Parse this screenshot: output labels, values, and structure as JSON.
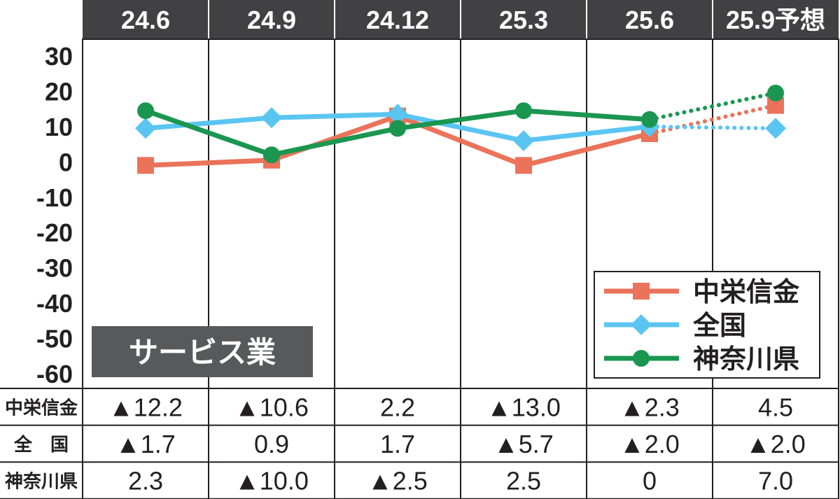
{
  "chart_data": {
    "type": "line",
    "categories": [
      "24.6",
      "24.9",
      "24.12",
      "25.3",
      "25.6",
      "25.9予想"
    ],
    "forecast_from_index": 4,
    "ylim": [
      -60,
      30
    ],
    "yticks": [
      "30",
      "20",
      "10",
      "0",
      "-10",
      "-20",
      "-30",
      "-40",
      "-50",
      "-60"
    ],
    "ytick_values": [
      30,
      20,
      10,
      0,
      -10,
      -20,
      -30,
      -40,
      -50,
      -60
    ],
    "badge": "サービス業",
    "legend_position": "bottom-right",
    "series": [
      {
        "name": "中栄信金",
        "color": "#ea735a",
        "marker": "square",
        "values": [
          -1,
          0.5,
          13,
          -1,
          8,
          16
        ]
      },
      {
        "name": "全国",
        "color": "#5bc5f2",
        "marker": "diamond",
        "values": [
          9.5,
          12.5,
          13.5,
          6,
          10,
          9.5
        ]
      },
      {
        "name": "神奈川県",
        "color": "#1a9650",
        "marker": "circle",
        "values": [
          14.5,
          2,
          9.5,
          14.5,
          12,
          19.5
        ]
      }
    ],
    "table": {
      "row_labels": [
        "中栄信金",
        "全　国",
        "神奈川県"
      ],
      "rows": [
        [
          "▲12.2",
          "▲10.6",
          "2.2",
          "▲13.0",
          "▲2.3",
          "4.5"
        ],
        [
          "▲1.7",
          "0.9",
          "1.7",
          "▲5.7",
          "▲2.0",
          "▲2.0"
        ],
        [
          "2.3",
          "▲10.0",
          "▲2.5",
          "2.5",
          "0",
          "7.0"
        ]
      ]
    }
  }
}
